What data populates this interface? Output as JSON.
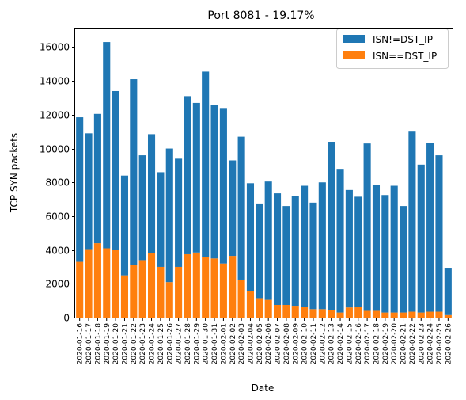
{
  "chart_data": {
    "type": "bar",
    "stacked": true,
    "title": "Port 8081 - 19.17%",
    "xlabel": "Date",
    "ylabel": "TCP SYN packets",
    "ylim": [
      0,
      17100
    ],
    "yticks": [
      0,
      2000,
      4000,
      6000,
      8000,
      10000,
      12000,
      14000,
      16000
    ],
    "ytick_labels": [
      "0",
      "2000",
      "4000",
      "6000",
      "8000",
      "10000",
      "12000",
      "14000",
      "16000"
    ],
    "legend_position": "top-right",
    "categories": [
      "2020-01-16",
      "2020-01-17",
      "2020-01-18",
      "2020-01-19",
      "2020-01-20",
      "2020-01-21",
      "2020-01-22",
      "2020-01-23",
      "2020-01-24",
      "2020-01-25",
      "2020-01-26",
      "2020-01-27",
      "2020-01-28",
      "2020-01-29",
      "2020-01-30",
      "2020-01-31",
      "2020-02-01",
      "2020-02-02",
      "2020-02-03",
      "2020-02-04",
      "2020-02-05",
      "2020-02-06",
      "2020-02-07",
      "2020-02-08",
      "2020-02-09",
      "2020-02-10",
      "2020-02-11",
      "2020-02-12",
      "2020-02-13",
      "2020-02-14",
      "2020-02-15",
      "2020-02-16",
      "2020-02-17",
      "2020-02-18",
      "2020-02-19",
      "2020-02-20",
      "2020-02-21",
      "2020-02-22",
      "2020-02-23",
      "2020-02-24",
      "2020-02-25",
      "2020-02-26"
    ],
    "series": [
      {
        "name": "ISN!=DST_IP",
        "color": "#1f77b4",
        "totals": [
          11850,
          10900,
          12050,
          16300,
          13400,
          8400,
          14100,
          9600,
          10850,
          8600,
          10000,
          9400,
          13100,
          12700,
          14550,
          12600,
          12400,
          9300,
          10700,
          7950,
          6750,
          8050,
          7350,
          6600,
          7200,
          7800,
          6800,
          8000,
          10400,
          8800,
          7550,
          7150,
          10300,
          7850,
          7250,
          7800,
          6600,
          11000,
          9050,
          10350,
          9600,
          2950
        ],
        "values": [
          8550,
          6850,
          7650,
          12200,
          9400,
          5900,
          11000,
          6200,
          7050,
          5600,
          7900,
          6400,
          9350,
          8850,
          10950,
          9100,
          9200,
          5650,
          8450,
          6400,
          5600,
          7000,
          6600,
          5850,
          6500,
          7150,
          6300,
          7500,
          9950,
          8500,
          6950,
          6500,
          9900,
          7450,
          6950,
          7500,
          6300,
          10650,
          8750,
          10000,
          9250,
          2800
        ]
      },
      {
        "name": "ISN==DST_IP",
        "color": "#ff7f0e",
        "values": [
          3300,
          4050,
          4400,
          4100,
          4000,
          2500,
          3100,
          3400,
          3800,
          3000,
          2100,
          3000,
          3750,
          3850,
          3600,
          3500,
          3200,
          3650,
          2250,
          1550,
          1150,
          1050,
          750,
          750,
          700,
          650,
          500,
          500,
          450,
          300,
          600,
          650,
          400,
          400,
          300,
          300,
          300,
          350,
          300,
          350,
          350,
          150
        ]
      }
    ]
  }
}
